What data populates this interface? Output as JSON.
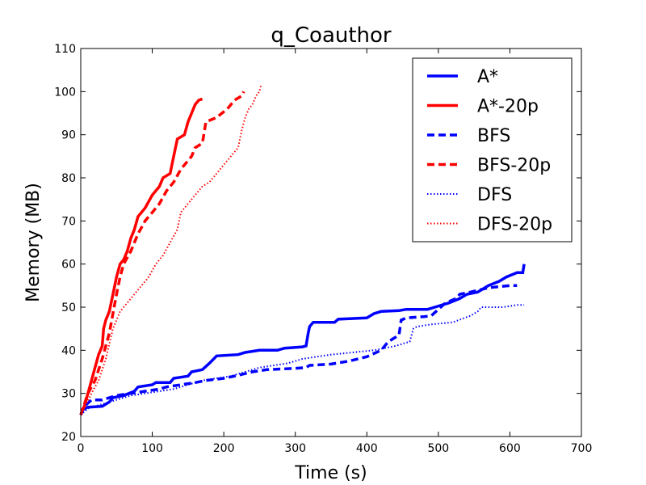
{
  "chart_data": {
    "type": "line",
    "title": "q_Coauthor",
    "xlabel": "Time (s)",
    "ylabel": "Memory (MB)",
    "xlim": [
      0,
      700
    ],
    "ylim": [
      20,
      110
    ],
    "xticks": [
      0,
      100,
      200,
      300,
      400,
      500,
      600,
      700
    ],
    "yticks": [
      20,
      30,
      40,
      50,
      60,
      70,
      80,
      90,
      100,
      110
    ],
    "grid": false,
    "legend_position": "top-right",
    "series": [
      {
        "name": "A*",
        "color": "#0000ff",
        "style": "solid",
        "points": [
          [
            0,
            26
          ],
          [
            10,
            26.8
          ],
          [
            30,
            27
          ],
          [
            40,
            28
          ],
          [
            45,
            29
          ],
          [
            60,
            29.5
          ],
          [
            75,
            30.5
          ],
          [
            80,
            31.5
          ],
          [
            100,
            32
          ],
          [
            105,
            32.5
          ],
          [
            125,
            32.5
          ],
          [
            130,
            33.5
          ],
          [
            150,
            34
          ],
          [
            155,
            35
          ],
          [
            170,
            35.5
          ],
          [
            180,
            37
          ],
          [
            190,
            38.7
          ],
          [
            220,
            39
          ],
          [
            230,
            39.5
          ],
          [
            250,
            40
          ],
          [
            275,
            40
          ],
          [
            285,
            40.5
          ],
          [
            310,
            40.8
          ],
          [
            315,
            41
          ],
          [
            318,
            44
          ],
          [
            320,
            45.5
          ],
          [
            325,
            46.5
          ],
          [
            355,
            46.5
          ],
          [
            360,
            47.2
          ],
          [
            400,
            47.5
          ],
          [
            410,
            48.5
          ],
          [
            420,
            49
          ],
          [
            445,
            49.2
          ],
          [
            455,
            49.5
          ],
          [
            485,
            49.5
          ],
          [
            495,
            50
          ],
          [
            515,
            51
          ],
          [
            530,
            52
          ],
          [
            540,
            53
          ],
          [
            555,
            53.5
          ],
          [
            570,
            55
          ],
          [
            585,
            56
          ],
          [
            595,
            57
          ],
          [
            610,
            58
          ],
          [
            618,
            58
          ],
          [
            620,
            60
          ]
        ]
      },
      {
        "name": "A*-20p",
        "color": "#ff0000",
        "style": "solid",
        "points": [
          [
            0,
            25
          ],
          [
            5,
            27
          ],
          [
            10,
            30
          ],
          [
            15,
            33
          ],
          [
            20,
            36
          ],
          [
            25,
            39
          ],
          [
            30,
            41
          ],
          [
            32,
            45
          ],
          [
            35,
            47
          ],
          [
            40,
            49
          ],
          [
            45,
            53
          ],
          [
            50,
            57
          ],
          [
            55,
            60
          ],
          [
            60,
            61
          ],
          [
            65,
            63
          ],
          [
            70,
            66
          ],
          [
            75,
            68
          ],
          [
            80,
            71
          ],
          [
            90,
            73
          ],
          [
            100,
            76
          ],
          [
            110,
            78
          ],
          [
            115,
            80
          ],
          [
            125,
            81
          ],
          [
            130,
            85
          ],
          [
            135,
            89
          ],
          [
            145,
            90
          ],
          [
            150,
            93
          ],
          [
            155,
            95
          ],
          [
            160,
            97
          ],
          [
            165,
            98
          ],
          [
            170,
            98.3
          ]
        ]
      },
      {
        "name": "BFS",
        "color": "#0000ff",
        "style": "dashed",
        "points": [
          [
            0,
            25
          ],
          [
            5,
            27
          ],
          [
            15,
            28.5
          ],
          [
            30,
            28.5
          ],
          [
            50,
            29.5
          ],
          [
            70,
            30
          ],
          [
            90,
            30.5
          ],
          [
            110,
            31
          ],
          [
            120,
            31.5
          ],
          [
            140,
            32
          ],
          [
            160,
            32.5
          ],
          [
            175,
            33
          ],
          [
            200,
            33.5
          ],
          [
            215,
            34
          ],
          [
            240,
            35
          ],
          [
            260,
            35.5
          ],
          [
            300,
            35.8
          ],
          [
            315,
            36
          ],
          [
            320,
            36.5
          ],
          [
            350,
            36.8
          ],
          [
            375,
            37.5
          ],
          [
            400,
            38.5
          ],
          [
            420,
            40
          ],
          [
            430,
            42
          ],
          [
            440,
            43
          ],
          [
            445,
            43.5
          ],
          [
            448,
            47
          ],
          [
            455,
            47.5
          ],
          [
            480,
            47.8
          ],
          [
            490,
            48
          ],
          [
            500,
            49.5
          ],
          [
            510,
            51
          ],
          [
            525,
            52
          ],
          [
            530,
            53
          ],
          [
            545,
            53.5
          ],
          [
            570,
            54.5
          ],
          [
            600,
            55
          ],
          [
            610,
            55
          ]
        ]
      },
      {
        "name": "BFS-20p",
        "color": "#ff0000",
        "style": "dashed",
        "points": [
          [
            0,
            25
          ],
          [
            10,
            30
          ],
          [
            20,
            33
          ],
          [
            30,
            38
          ],
          [
            40,
            44
          ],
          [
            50,
            53
          ],
          [
            55,
            57
          ],
          [
            60,
            60
          ],
          [
            70,
            63
          ],
          [
            80,
            67
          ],
          [
            90,
            70
          ],
          [
            100,
            72
          ],
          [
            110,
            74
          ],
          [
            120,
            77
          ],
          [
            130,
            79
          ],
          [
            140,
            82
          ],
          [
            150,
            84
          ],
          [
            155,
            85
          ],
          [
            160,
            87
          ],
          [
            170,
            88
          ],
          [
            175,
            93
          ],
          [
            190,
            94
          ],
          [
            205,
            96
          ],
          [
            215,
            98
          ],
          [
            225,
            99
          ],
          [
            228,
            100
          ]
        ]
      },
      {
        "name": "DFS",
        "color": "#0000ff",
        "style": "dotted",
        "points": [
          [
            0,
            25
          ],
          [
            10,
            26.5
          ],
          [
            30,
            27.5
          ],
          [
            50,
            28.5
          ],
          [
            70,
            29.5
          ],
          [
            90,
            30
          ],
          [
            110,
            30.5
          ],
          [
            130,
            31
          ],
          [
            150,
            32
          ],
          [
            170,
            33
          ],
          [
            190,
            33.5
          ],
          [
            210,
            34
          ],
          [
            230,
            35
          ],
          [
            250,
            36
          ],
          [
            270,
            36.5
          ],
          [
            290,
            37
          ],
          [
            310,
            38
          ],
          [
            330,
            38.5
          ],
          [
            350,
            39
          ],
          [
            380,
            39.5
          ],
          [
            410,
            40
          ],
          [
            440,
            41
          ],
          [
            460,
            42
          ],
          [
            465,
            45
          ],
          [
            470,
            45.5
          ],
          [
            490,
            46
          ],
          [
            520,
            46.5
          ],
          [
            545,
            48
          ],
          [
            555,
            49
          ],
          [
            560,
            50
          ],
          [
            590,
            50
          ],
          [
            610,
            50.5
          ],
          [
            620,
            50.5
          ]
        ]
      },
      {
        "name": "DFS-20p",
        "color": "#ff0000",
        "style": "dotted",
        "points": [
          [
            0,
            25
          ],
          [
            15,
            30
          ],
          [
            25,
            33
          ],
          [
            35,
            38
          ],
          [
            45,
            45
          ],
          [
            55,
            49
          ],
          [
            65,
            51
          ],
          [
            75,
            53
          ],
          [
            85,
            55
          ],
          [
            95,
            57
          ],
          [
            105,
            60
          ],
          [
            115,
            62
          ],
          [
            125,
            65
          ],
          [
            135,
            68
          ],
          [
            140,
            72
          ],
          [
            150,
            74
          ],
          [
            160,
            76
          ],
          [
            170,
            78
          ],
          [
            180,
            79
          ],
          [
            190,
            81
          ],
          [
            200,
            83
          ],
          [
            210,
            85
          ],
          [
            220,
            87
          ],
          [
            225,
            91
          ],
          [
            230,
            94
          ],
          [
            235,
            96
          ],
          [
            240,
            97
          ],
          [
            245,
            99
          ],
          [
            250,
            100
          ],
          [
            252,
            101.5
          ]
        ]
      }
    ]
  }
}
